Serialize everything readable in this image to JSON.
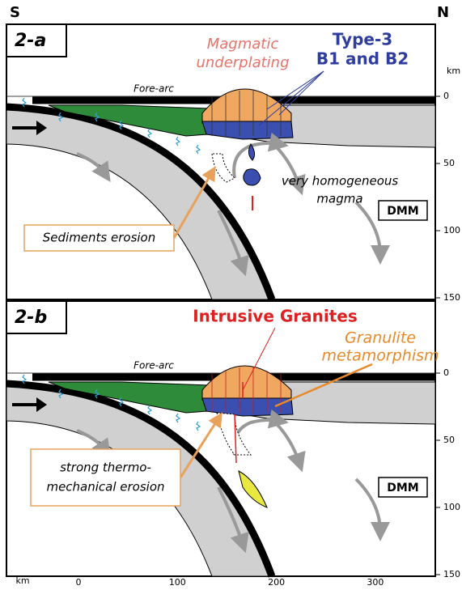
{
  "header": {
    "left": "S",
    "right": "N"
  },
  "axes": {
    "y_unit": "km",
    "x_unit": "km",
    "yticks": [
      0,
      50,
      100,
      150
    ],
    "xticks": [
      0,
      100,
      200,
      300
    ]
  },
  "panels": [
    {
      "label": "2-a",
      "fore_arc": "Fore-arc",
      "annotations": [
        {
          "lines": [
            "Magmatic",
            "underplating"
          ]
        },
        {
          "lines": [
            "Type-3",
            "B1 and B2"
          ]
        },
        {
          "lines": [
            "very homogeneous",
            "magma"
          ]
        }
      ],
      "mantle": "DMM",
      "callout": {
        "lines": [
          "Sediments erosion"
        ]
      }
    },
    {
      "label": "2-b",
      "fore_arc": "Fore-arc",
      "annotations": [
        {
          "lines": [
            "Intrusive Granites"
          ]
        },
        {
          "lines": [
            "Granulite",
            "metamorphism"
          ]
        }
      ],
      "mantle": "DMM",
      "callout": {
        "lines": [
          "strong thermo-",
          "mechanical erosion"
        ]
      }
    }
  ]
}
